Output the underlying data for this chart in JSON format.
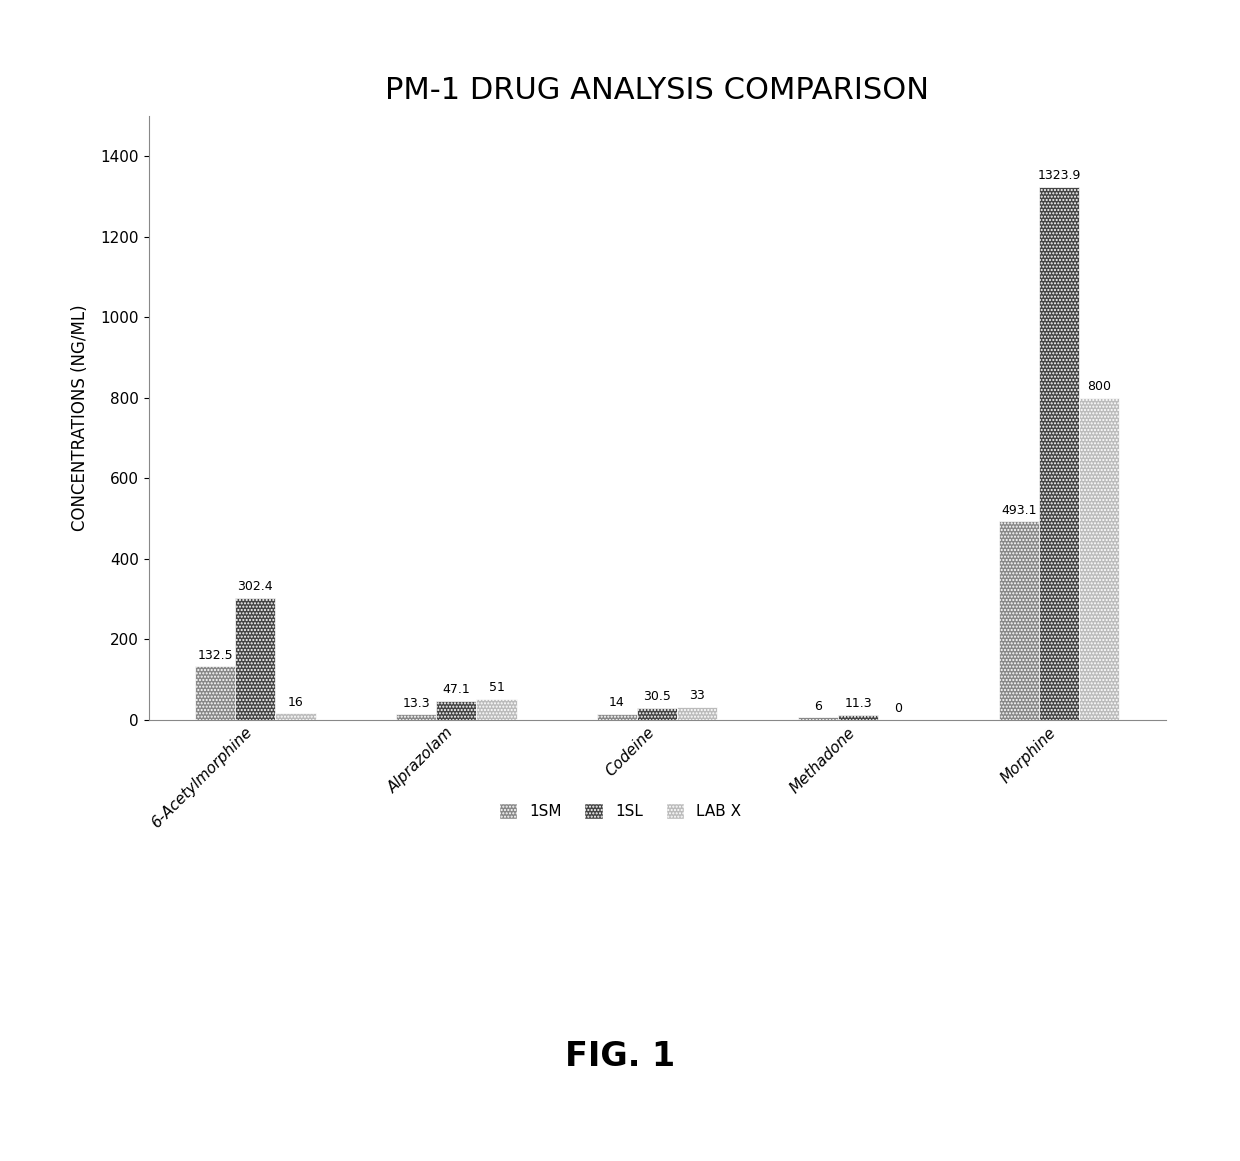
{
  "title": "PM-1 DRUG ANALYSIS COMPARISON",
  "ylabel": "CONCENTRATIONS (NG/ML)",
  "categories": [
    "6-Acetylmorphine",
    "Alprazolam",
    "Codeine",
    "Methadone",
    "Morphine"
  ],
  "series": {
    "1SM": [
      132.5,
      13.3,
      14.0,
      6.0,
      493.1
    ],
    "1SL": [
      302.4,
      47.1,
      30.5,
      11.3,
      1323.9
    ],
    "LAB X": [
      16,
      51,
      33,
      0,
      800
    ]
  },
  "bar_colors": {
    "1SM": "#888888",
    "1SL": "#444444",
    "LAB X": "#bbbbbb"
  },
  "bar_hatches": {
    "1SM": ".....",
    "1SL": ".....",
    "LAB X": "....."
  },
  "ylim": [
    0,
    1500
  ],
  "yticks": [
    0,
    200,
    400,
    600,
    800,
    1000,
    1200,
    1400
  ],
  "bar_width": 0.2,
  "title_fontsize": 22,
  "axis_label_fontsize": 12,
  "tick_fontsize": 11,
  "value_fontsize": 9,
  "legend_fontsize": 11,
  "background_color": "#ffffff"
}
